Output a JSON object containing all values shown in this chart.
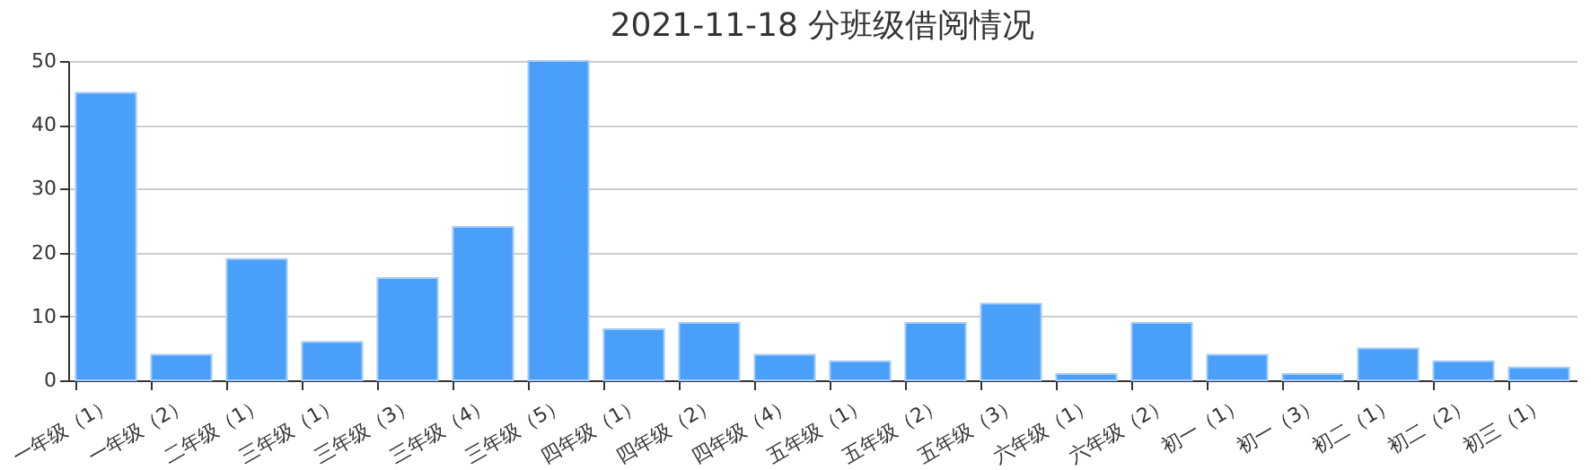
{
  "chart_data": {
    "type": "bar",
    "title": "2021-11-18 分班级借阅情况",
    "categories": [
      "一年级（1）",
      "一年级（2）",
      "二年级（1）",
      "三年级（1）",
      "三年级（3）",
      "三年级（4）",
      "三年级（5）",
      "四年级（1）",
      "四年级（2）",
      "四年级（4）",
      "五年级（1）",
      "五年级（2）",
      "五年级（3）",
      "六年级（1）",
      "六年级（2）",
      "初一（1）",
      "初一（3）",
      "初二（1）",
      "初二（2）",
      "初三（1）"
    ],
    "values": [
      45,
      4,
      19,
      6,
      16,
      24,
      50,
      8,
      9,
      4,
      3,
      9,
      12,
      1,
      9,
      4,
      1,
      5,
      3,
      2
    ],
    "color": "#4a9ff9",
    "ylim": [
      0,
      50
    ],
    "yticks": [
      0,
      10,
      20,
      30,
      40,
      50
    ],
    "grid": "y"
  }
}
